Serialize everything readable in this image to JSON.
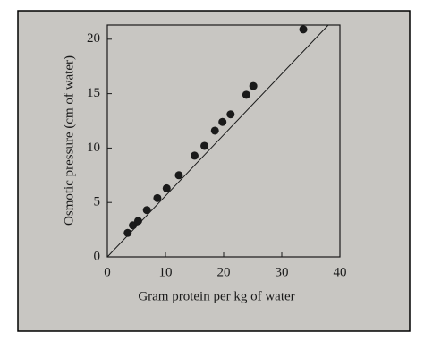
{
  "chart_data": {
    "type": "scatter",
    "xlabel": "Gram protein per kg of water",
    "ylabel": "Osmotic pressure (cm of water)",
    "x": [
      3.5,
      4.4,
      5.3,
      6.8,
      8.6,
      10.2,
      12.3,
      15.0,
      16.7,
      18.5,
      19.8,
      21.2,
      23.9,
      25.1,
      33.7
    ],
    "values": [
      2.2,
      2.9,
      3.3,
      4.3,
      5.4,
      6.3,
      7.5,
      9.3,
      10.2,
      11.6,
      12.4,
      13.1,
      14.9,
      15.7,
      20.9
    ],
    "fit": {
      "x": [
        0,
        38
      ],
      "values": [
        0,
        21.3
      ]
    },
    "color": "#1a1a1a",
    "xlim": [
      0,
      40
    ],
    "ylim": [
      0,
      21.3
    ],
    "xticks": [
      0,
      10,
      20,
      30,
      40
    ],
    "yticks": [
      0,
      5,
      10,
      15,
      20
    ]
  }
}
